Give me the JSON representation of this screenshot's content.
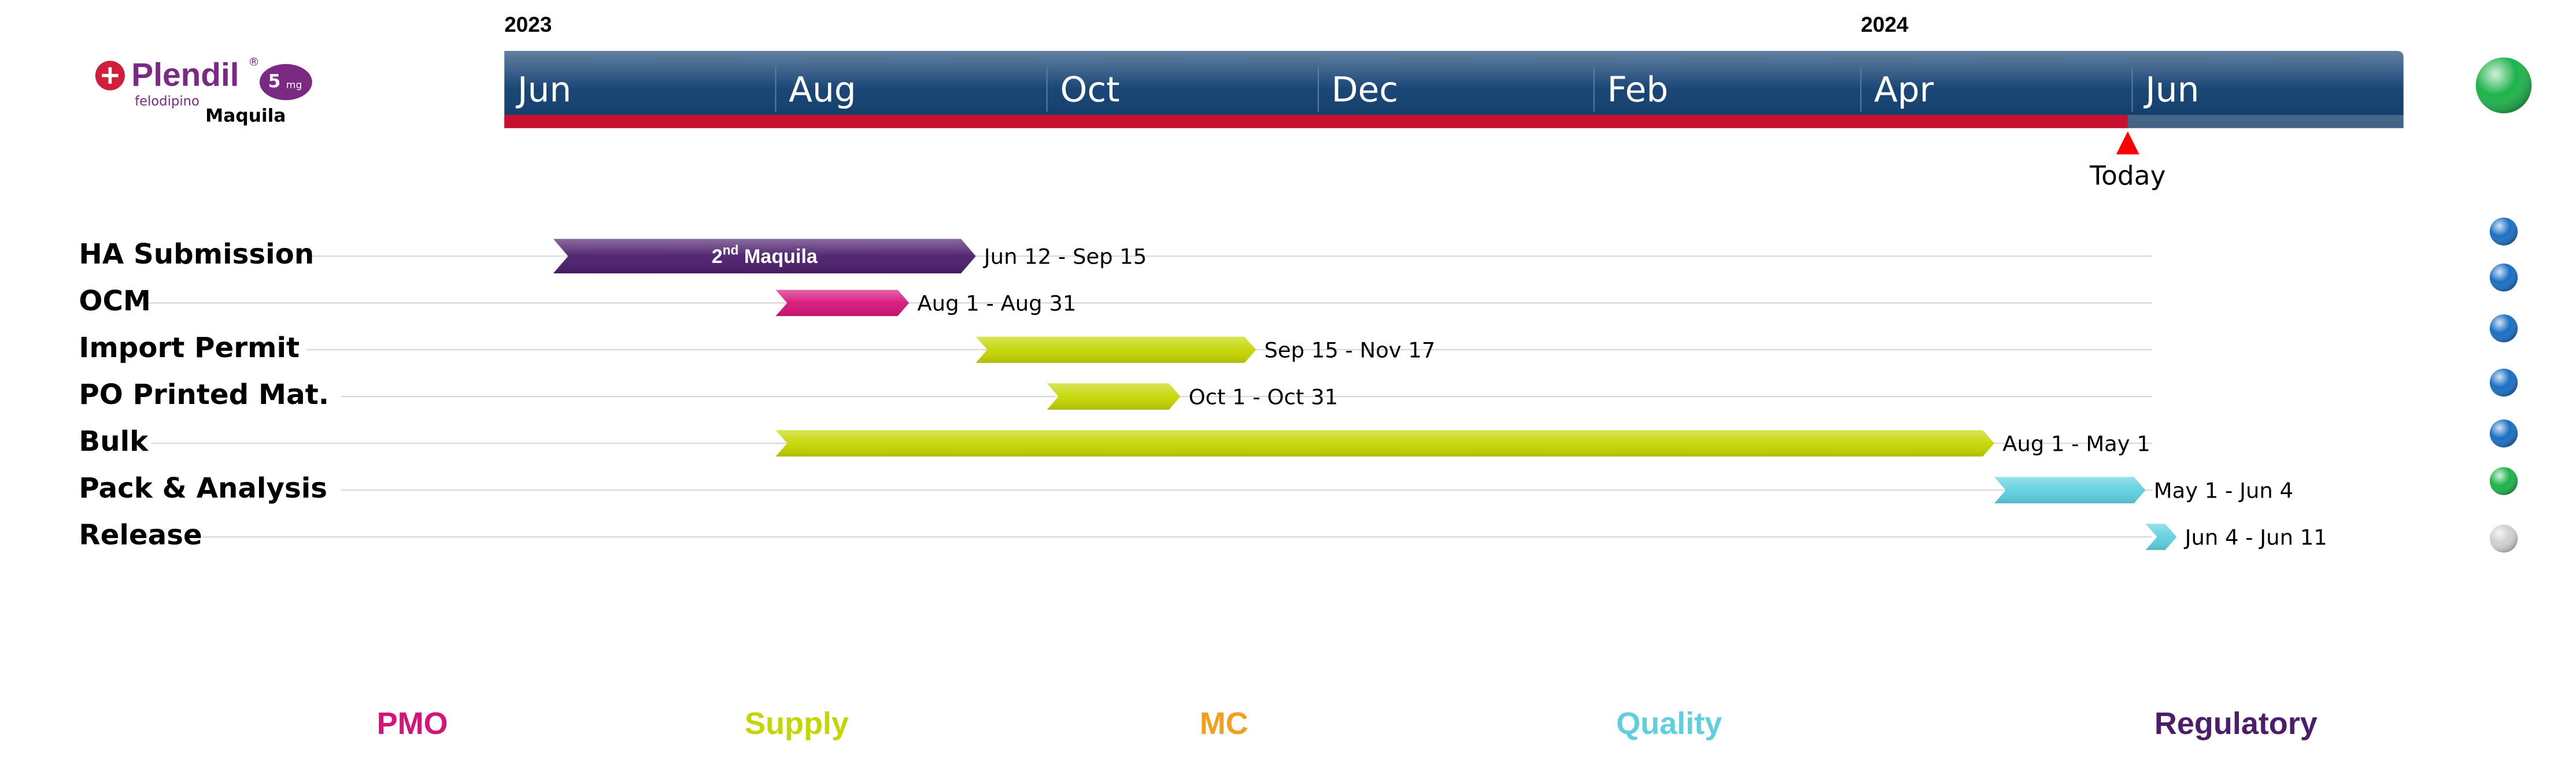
{
  "logo": {
    "brand": "Plendil",
    "registered": "®",
    "strength": "5",
    "unit": "mg",
    "generic": "felodipino",
    "subtitle": "Maquila"
  },
  "chart_data": {
    "type": "gantt",
    "xlim": [
      "2023-06-01",
      "2024-08-01"
    ],
    "xticks": [
      {
        "value": "2023-06-01",
        "label": "Jun"
      },
      {
        "value": "2023-08-01",
        "label": "Aug"
      },
      {
        "value": "2023-10-01",
        "label": "Oct"
      },
      {
        "value": "2023-12-01",
        "label": "Dec"
      },
      {
        "value": "2024-02-01",
        "label": "Feb"
      },
      {
        "value": "2024-04-01",
        "label": "Apr"
      },
      {
        "value": "2024-06-01",
        "label": "Jun"
      }
    ],
    "year_labels": [
      {
        "value": "2023-06-01",
        "label": "2023"
      },
      {
        "value": "2024-04-01",
        "label": "2024"
      }
    ],
    "axis_color": "#0d3c6e",
    "progress_color": "#c8102e",
    "today": {
      "value": "2024-05-31",
      "label": "Today"
    },
    "overall_status": "#1db34a",
    "tasks": [
      {
        "name": "HA Submission",
        "start": "2023-06-12",
        "end": "2023-09-15",
        "value_label": "Jun 12 - Sep 15",
        "color": "#4b1d6b",
        "status": "#1a6fc4",
        "bar_label": [
          "2",
          "nd",
          " Maquila"
        ]
      },
      {
        "name": "OCM",
        "start": "2023-08-01",
        "end": "2023-08-31",
        "value_label": "Aug 1 - Aug 31",
        "color": "#d6137a",
        "status": "#1a6fc4"
      },
      {
        "name": "Import Permit",
        "start": "2023-09-15",
        "end": "2023-11-17",
        "value_label": "Sep 15 - Nov 17",
        "color": "#c4d600",
        "status": "#1a6fc4"
      },
      {
        "name": "PO Printed Mat.",
        "start": "2023-10-01",
        "end": "2023-10-31",
        "value_label": "Oct 1 - Oct 31",
        "color": "#c4d600",
        "status": "#1a6fc4"
      },
      {
        "name": "Bulk",
        "start": "2023-08-01",
        "end": "2024-05-01",
        "value_label": "Aug 1 - May 1",
        "color": "#c4d600",
        "status": "#1a6fc4"
      },
      {
        "name": "Pack & Analysis",
        "start": "2024-05-01",
        "end": "2024-06-04",
        "value_label": "May 1 - Jun 4",
        "color": "#5fcfdf",
        "status": "#1db34a"
      },
      {
        "name": "Release",
        "start": "2024-06-04",
        "end": "2024-06-11",
        "value_label": "Jun 4 - Jun 11",
        "color": "#5fcfdf",
        "status": "#cfcfcf"
      }
    ],
    "legend": [
      {
        "name": "PMO",
        "color": "#d6137a"
      },
      {
        "name": "Supply",
        "color": "#c4d600"
      },
      {
        "name": "MC",
        "color": "#f0a01e"
      },
      {
        "name": "Quality",
        "color": "#5fcfdf"
      },
      {
        "name": "Regulatory",
        "color": "#4b1d6b"
      }
    ]
  }
}
